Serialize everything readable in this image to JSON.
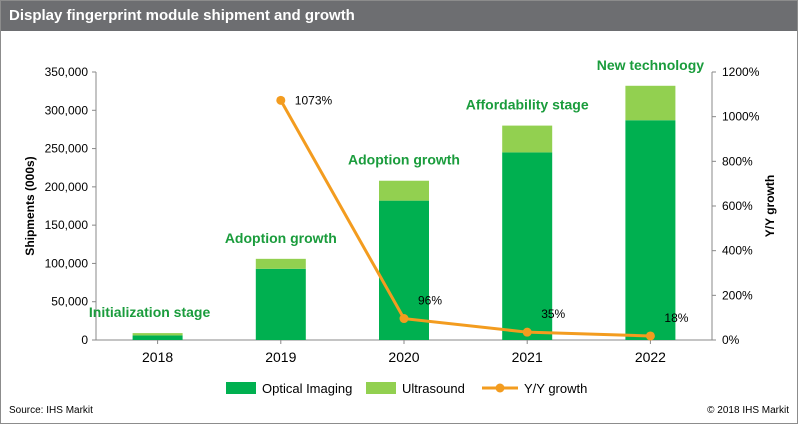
{
  "header": {
    "title": "Display fingerprint module shipment and growth"
  },
  "footer": {
    "source": "Source: IHS Markit",
    "copyright": "© 2018 IHS Markit"
  },
  "colors": {
    "optical": "#00b050",
    "ultrasound": "#92d050",
    "growth": "#f39c1f",
    "stage_text": "#1a9c3c",
    "title_bar": "#6d6e71"
  },
  "chart_data": {
    "type": "bar",
    "stacked": true,
    "title": "Display fingerprint module shipment and growth",
    "categories": [
      "2018",
      "2019",
      "2020",
      "2021",
      "2022"
    ],
    "series": [
      {
        "name": "Optical Imaging",
        "type": "bar",
        "values": [
          6000,
          93000,
          182000,
          245000,
          287000
        ]
      },
      {
        "name": "Ultrasound",
        "type": "bar",
        "values": [
          3000,
          13000,
          26000,
          35000,
          45000
        ]
      },
      {
        "name": "Y/Y growth",
        "type": "line",
        "axis": "right",
        "values": [
          null,
          1073,
          96,
          35,
          18
        ],
        "labels": [
          "",
          "1073%",
          "96%",
          "35%",
          "18%"
        ]
      }
    ],
    "ylabel": "Shipments (000s)",
    "y2label": "Y/Y growth",
    "ylim": [
      0,
      350000
    ],
    "y2lim": [
      0,
      1200
    ],
    "y_ticks": [
      "0",
      "50,000",
      "100,000",
      "150,000",
      "200,000",
      "250,000",
      "300,000",
      "350,000"
    ],
    "y2_ticks": [
      "0%",
      "200%",
      "400%",
      "600%",
      "800%",
      "1000%",
      "1200%"
    ],
    "annotations": [
      "Initialization stage",
      "Adoption growth",
      "Adoption growth",
      "Affordability stage",
      "New technology"
    ],
    "legend_position": "bottom",
    "grid": false
  }
}
